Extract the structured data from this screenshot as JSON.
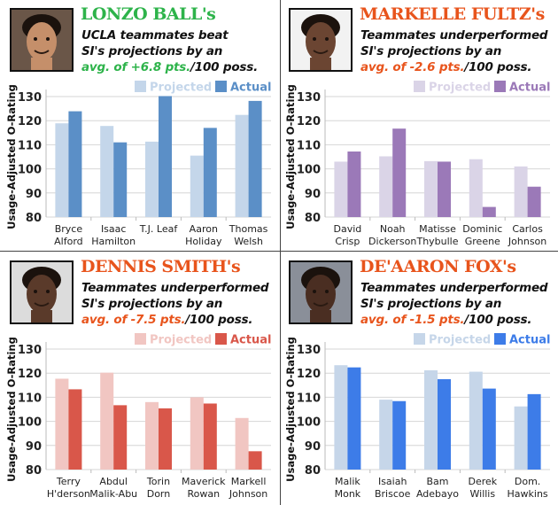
{
  "chart_data": [
    {
      "type": "bar",
      "title": "LONZO BALL's",
      "subtitle_lines": [
        "UCLA teammates beat",
        "SI's projections by an"
      ],
      "highlight": "avg. of +6.8 pts.",
      "suffix": "/100 poss.",
      "title_color": "#2db34a",
      "ylabel": "Usage-Adjusted O-Rating",
      "ylim": [
        80,
        130
      ],
      "yticks": [
        "80",
        "90",
        "100",
        "110",
        "120",
        "130"
      ],
      "grid": true,
      "legend_position": "top-right",
      "categories": [
        [
          "Bryce",
          "Alford"
        ],
        [
          "Isaac",
          "Hamilton"
        ],
        [
          "T.J. Leaf",
          ""
        ],
        [
          "Aaron",
          "Holiday"
        ],
        [
          "Thomas",
          "Welsh"
        ]
      ],
      "series": [
        {
          "name": "Projected",
          "color": "#c4d6ea",
          "values": [
            118.9,
            117.8,
            111.3,
            105.5,
            122.4
          ]
        },
        {
          "name": "Actual",
          "color": "#5b8fc7",
          "values": [
            123.9,
            111.0,
            130.2,
            117.0,
            128.2
          ]
        }
      ]
    },
    {
      "type": "bar",
      "title": "MARKELLE FULTZ's",
      "subtitle_lines": [
        "Teammates underperformed",
        "SI's projections by an"
      ],
      "highlight": "avg. of -2.6 pts.",
      "suffix": "/100 poss.",
      "title_color": "#e8541c",
      "ylabel": "Usage-Adjusted O-Rating",
      "ylim": [
        80,
        130
      ],
      "yticks": [
        "80",
        "90",
        "100",
        "110",
        "120",
        "130"
      ],
      "grid": true,
      "legend_position": "top-right",
      "categories": [
        [
          "David",
          "Crisp"
        ],
        [
          "Noah",
          "Dickerson"
        ],
        [
          "Matisse",
          "Thybulle"
        ],
        [
          "Dominic",
          "Greene"
        ],
        [
          "Carlos",
          "Johnson"
        ]
      ],
      "series": [
        {
          "name": "Projected",
          "color": "#dad4e7",
          "values": [
            103.0,
            105.2,
            103.2,
            104.0,
            101.0
          ]
        },
        {
          "name": "Actual",
          "color": "#9b79b8",
          "values": [
            107.2,
            116.7,
            103.0,
            84.2,
            92.6
          ]
        }
      ]
    },
    {
      "type": "bar",
      "title": "DENNIS SMITH's",
      "subtitle_lines": [
        "Teammates underperformed",
        "SI's projections by an"
      ],
      "highlight": "avg. of -7.5 pts.",
      "suffix": "/100 poss.",
      "title_color": "#e8541c",
      "ylabel": "Usage-Adjusted O-Rating",
      "ylim": [
        80,
        130
      ],
      "yticks": [
        "80",
        "90",
        "100",
        "110",
        "120",
        "130"
      ],
      "grid": true,
      "legend_position": "top-right",
      "categories": [
        [
          "Terry",
          "H'derson"
        ],
        [
          "Abdul",
          "Malik-Abu"
        ],
        [
          "Torin",
          "Dorn"
        ],
        [
          "Maverick",
          "Rowan"
        ],
        [
          "Markell",
          "Johnson"
        ]
      ],
      "series": [
        {
          "name": "Projected",
          "color": "#f1c6c2",
          "values": [
            117.7,
            120.2,
            108.0,
            110.0,
            101.4
          ]
        },
        {
          "name": "Actual",
          "color": "#d9574a",
          "values": [
            113.3,
            106.7,
            105.4,
            107.4,
            87.6
          ]
        }
      ]
    },
    {
      "type": "bar",
      "title": "DE'AARON FOX's",
      "subtitle_lines": [
        "Teammates underperformed",
        "SI's projections by an"
      ],
      "highlight": "avg. of -1.5 pts.",
      "suffix": "/100 poss.",
      "title_color": "#e8541c",
      "ylabel": "Usage-Adjusted O-Rating",
      "ylim": [
        80,
        130
      ],
      "yticks": [
        "80",
        "90",
        "100",
        "110",
        "120",
        "130"
      ],
      "grid": true,
      "legend_position": "top-right",
      "categories": [
        [
          "Malik",
          "Monk"
        ],
        [
          "Isaiah",
          "Briscoe"
        ],
        [
          "Bam",
          "Adebayo"
        ],
        [
          "Derek",
          "Willis"
        ],
        [
          "Dom.",
          "Hawkins"
        ]
      ],
      "series": [
        {
          "name": "Projected",
          "color": "#c6d6e9",
          "values": [
            123.3,
            109.0,
            121.2,
            120.6,
            106.2
          ]
        },
        {
          "name": "Actual",
          "color": "#3d7ce8",
          "values": [
            122.4,
            108.4,
            117.5,
            113.6,
            111.3
          ]
        }
      ]
    }
  ]
}
